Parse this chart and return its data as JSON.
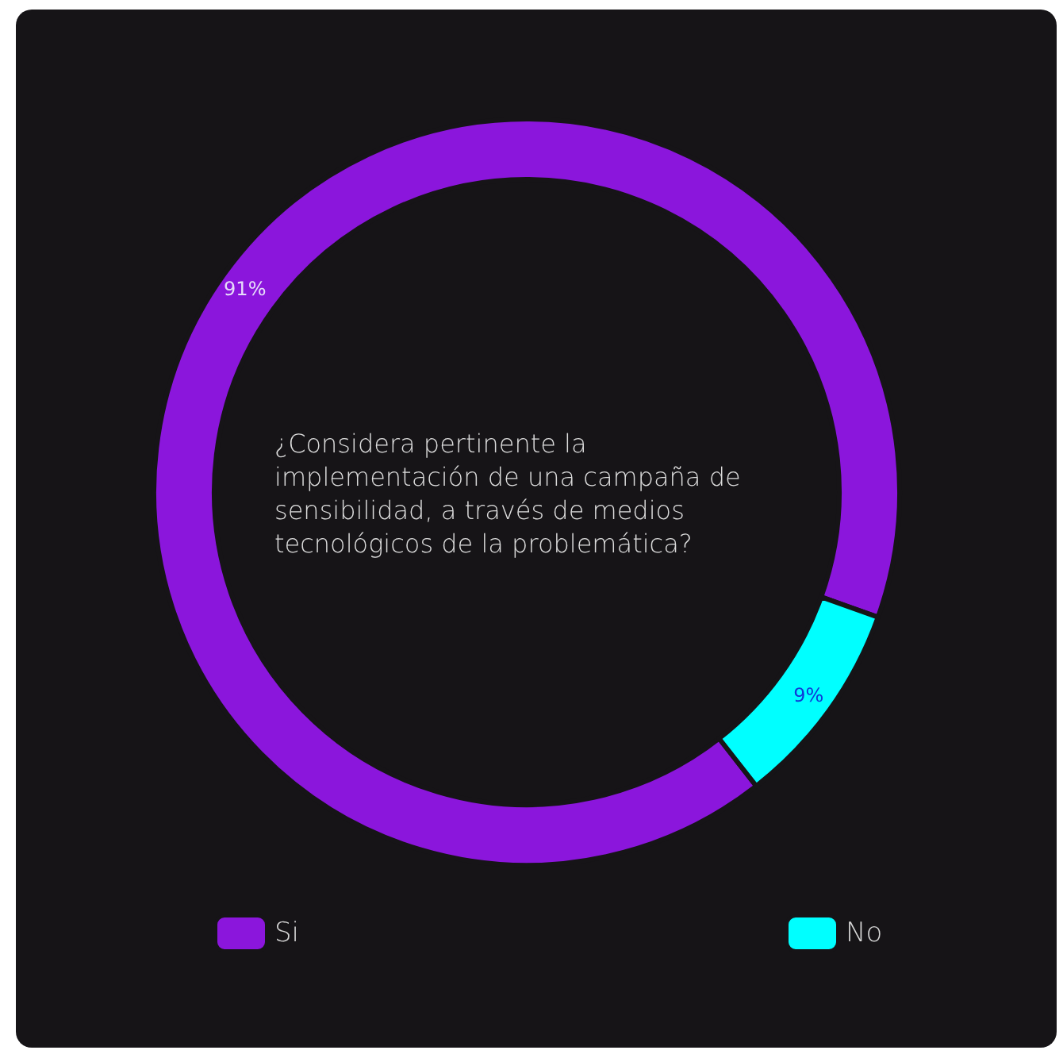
{
  "chart_data": {
    "type": "donut",
    "title": "¿Considera pertinente la implementación de una campaña de sensibilidad, a través de medios tecnológicos de la problemática?",
    "categories": [
      "Si",
      "No"
    ],
    "values": [
      91,
      9
    ],
    "colors": [
      "#8b16dc",
      "#00ffff"
    ],
    "value_labels": [
      "91%",
      "9%"
    ],
    "legend": "bottom"
  }
}
